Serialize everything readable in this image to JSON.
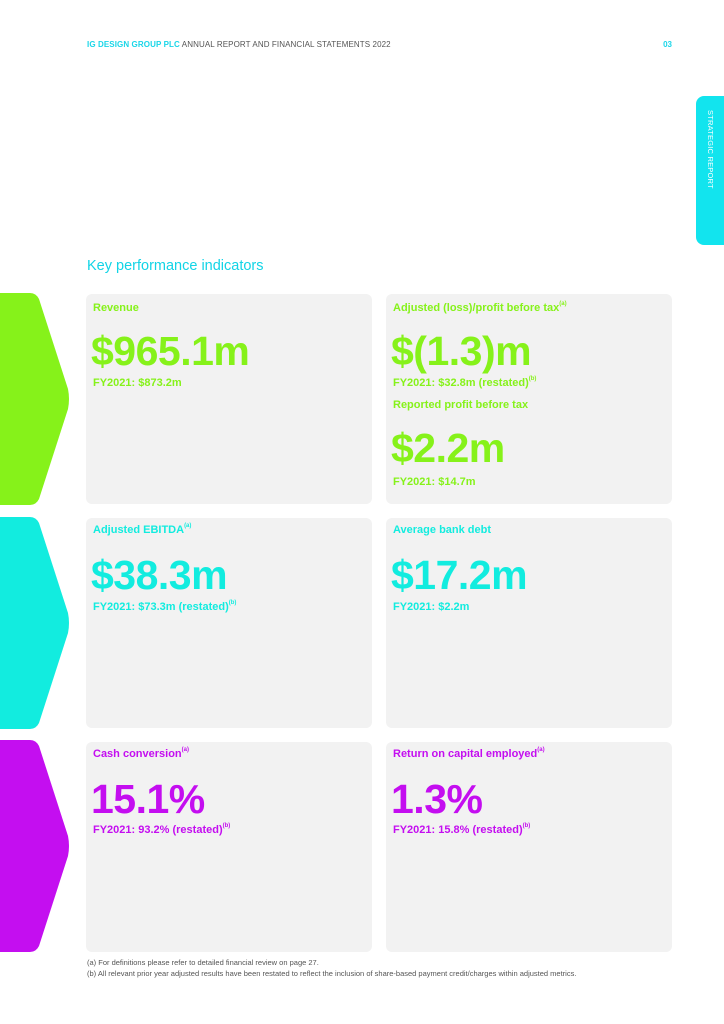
{
  "header": {
    "company": "IG DESIGN GROUP PLC",
    "document": "ANNUAL REPORT AND FINANCIAL STATEMENTS 2022",
    "page_number": "03"
  },
  "side_tab": {
    "label": "STRATEGIC REPORT"
  },
  "section_title": "Key performance indicators",
  "colors": {
    "green": "#86f21a",
    "cyan": "#12ecdf",
    "magenta": "#c40ef0",
    "tab": "#12e4ee"
  },
  "kpis": {
    "revenue": {
      "label": "Revenue",
      "value": "$965.1m",
      "prior": "FY2021: $873.2m"
    },
    "adj_pbt": {
      "label": "Adjusted (loss)/profit before tax",
      "label_note": "(a)",
      "value": "$(1.3)m",
      "prior": "FY2021: $32.8m (restated)",
      "prior_note": "(b)"
    },
    "reported_pbt": {
      "label": "Reported profit before tax",
      "value": "$2.2m",
      "prior": "FY2021: $14.7m"
    },
    "adj_ebitda": {
      "label": "Adjusted EBITDA",
      "label_note": "(a)",
      "value": "$38.3m",
      "prior": "FY2021: $73.3m (restated)",
      "prior_note": "(b)"
    },
    "bank_debt": {
      "label": "Average bank debt",
      "value": "$17.2m",
      "prior": "FY2021: $2.2m"
    },
    "cash_conversion": {
      "label": "Cash conversion",
      "label_note": "(a)",
      "value": "15.1%",
      "prior": "FY2021: 93.2% (restated)",
      "prior_note": "(b)"
    },
    "roce": {
      "label": "Return on capital employed",
      "label_note": "(a)",
      "value": "1.3%",
      "prior": "FY2021: 15.8% (restated)",
      "prior_note": "(b)"
    }
  },
  "footnotes": [
    "(a)  For definitions please refer to detailed financial review on page 27.",
    "(b)  All relevant prior year adjusted results have been restated to reflect the inclusion of share-based payment credit/charges within adjusted metrics."
  ]
}
